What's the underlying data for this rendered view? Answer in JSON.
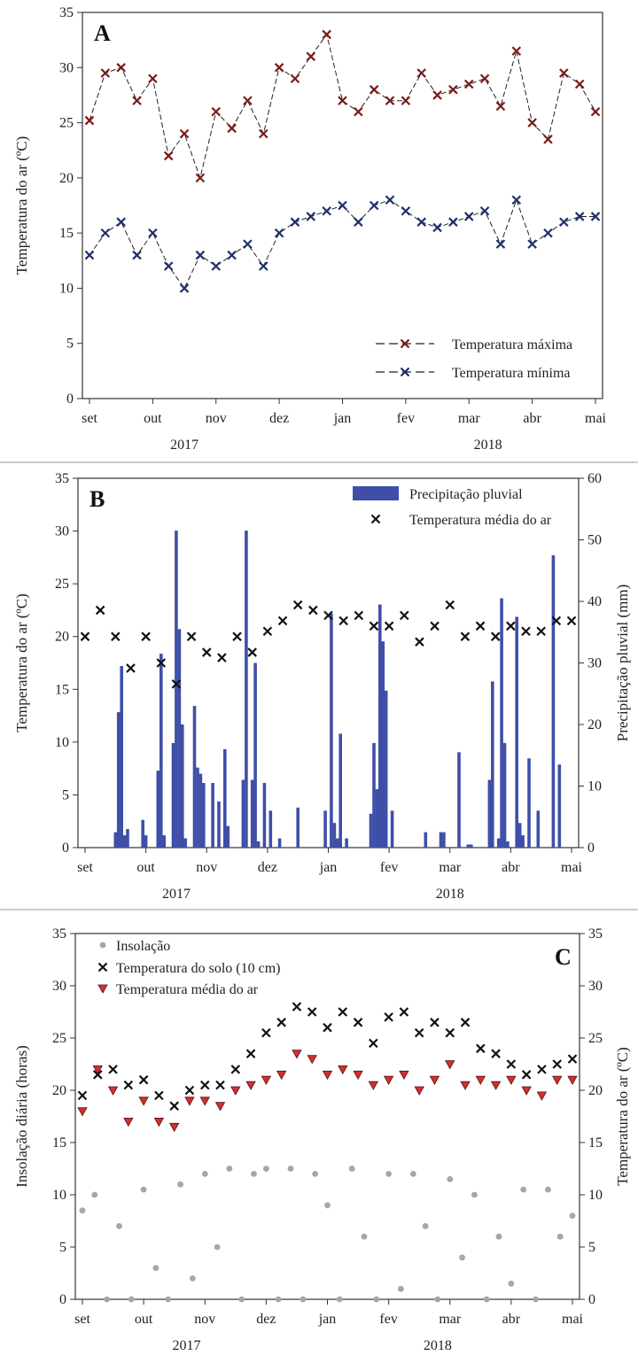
{
  "chart_data": [
    {
      "type": "line",
      "panel_label": "A",
      "ylabel": "Temperatura do ar (ºC)",
      "ylim": [
        0,
        35
      ],
      "yticks": [
        0,
        5,
        10,
        15,
        20,
        25,
        30,
        35
      ],
      "xlim": [
        0,
        8
      ],
      "xtick_labels": [
        "set",
        "out",
        "nov",
        "dez",
        "jan",
        "fev",
        "mar",
        "abr",
        "mai"
      ],
      "year_labels": [
        {
          "label": "2017",
          "x": 1.5
        },
        {
          "label": "2018",
          "x": 6.3
        }
      ],
      "legend_position": "bottom-right",
      "colors": {
        "max": "#7a1a1a",
        "min": "#1f2f6b"
      },
      "series": [
        {
          "name": "Temperatura máxima",
          "x": [
            0.0,
            0.25,
            0.5,
            0.75,
            1.0,
            1.25,
            1.5,
            1.75,
            2.0,
            2.25,
            2.5,
            2.75,
            3.0,
            3.25,
            3.5,
            3.75,
            4.0,
            4.25,
            4.5,
            4.75,
            5.0,
            5.25,
            5.5,
            5.75,
            6.0,
            6.25,
            6.5,
            6.75,
            7.0,
            7.25,
            7.5,
            7.75,
            8.0
          ],
          "values": [
            25.2,
            29.5,
            30.0,
            27.0,
            29.0,
            22.0,
            24.0,
            20.0,
            26.0,
            24.5,
            27.0,
            24.0,
            30.0,
            29.0,
            31.0,
            33.0,
            27.0,
            26.0,
            28.0,
            27.0,
            27.0,
            29.5,
            27.5,
            28.0,
            28.5,
            29.0,
            26.5,
            31.5,
            25.0,
            23.5,
            29.5,
            28.5,
            26.0
          ]
        },
        {
          "name": "Temperatura mínima",
          "x": [
            0.0,
            0.25,
            0.5,
            0.75,
            1.0,
            1.25,
            1.5,
            1.75,
            2.0,
            2.25,
            2.5,
            2.75,
            3.0,
            3.25,
            3.5,
            3.75,
            4.0,
            4.25,
            4.5,
            4.75,
            5.0,
            5.25,
            5.5,
            5.75,
            6.0,
            6.25,
            6.5,
            6.75,
            7.0,
            7.25,
            7.5,
            7.75,
            8.0
          ],
          "values": [
            13.0,
            15.0,
            16.0,
            13.0,
            15.0,
            12.0,
            10.0,
            13.0,
            12.0,
            13.0,
            14.0,
            12.0,
            15.0,
            16.0,
            16.5,
            17.0,
            17.5,
            16.0,
            17.5,
            18.0,
            17.0,
            16.0,
            15.5,
            16.0,
            16.5,
            17.0,
            14.0,
            18.0,
            14.0,
            15.0,
            16.0,
            16.5,
            16.5
          ]
        }
      ]
    },
    {
      "type": "bar",
      "panel_label": "B",
      "ylabel": "Temperatura do ar (ºC)",
      "ylabel_right": "Precipitação pluvial (mm)",
      "ylim": [
        0,
        35
      ],
      "yticks": [
        0,
        5,
        10,
        15,
        20,
        25,
        30,
        35
      ],
      "ylim_right": [
        0,
        60
      ],
      "yticks_right": [
        0,
        10,
        20,
        30,
        40,
        50,
        60
      ],
      "xlim": [
        0,
        8
      ],
      "xtick_labels": [
        "set",
        "out",
        "nov",
        "dez",
        "jan",
        "fev",
        "mar",
        "abr",
        "mai"
      ],
      "year_labels": [
        {
          "label": "2017",
          "x": 1.5
        },
        {
          "label": "2018",
          "x": 6.0
        }
      ],
      "legend_position": "top-right",
      "colors": {
        "precip": "#3f4fa8",
        "temp": "#111111"
      },
      "series": [
        {
          "name": "Precipitação pluvial",
          "axis": "right",
          "x": [
            0.5,
            0.55,
            0.6,
            0.65,
            0.7,
            0.95,
            1.0,
            1.2,
            1.25,
            1.3,
            1.45,
            1.5,
            1.55,
            1.6,
            1.65,
            1.8,
            1.85,
            1.9,
            1.95,
            2.1,
            2.2,
            2.3,
            2.35,
            2.6,
            2.65,
            2.75,
            2.8,
            2.85,
            2.95,
            3.05,
            3.2,
            3.5,
            3.95,
            4.05,
            4.1,
            4.15,
            4.2,
            4.3,
            4.7,
            4.75,
            4.8,
            4.85,
            4.9,
            4.95,
            5.05,
            5.6,
            5.85,
            5.9,
            6.15,
            6.3,
            6.35,
            6.65,
            6.7,
            6.8,
            6.85,
            6.9,
            6.95,
            7.1,
            7.15,
            7.2,
            7.3,
            7.45,
            7.7,
            7.8
          ],
          "values": [
            2.5,
            22.0,
            29.5,
            2.0,
            3.0,
            4.5,
            2.0,
            12.5,
            31.5,
            2.0,
            17.0,
            51.5,
            35.5,
            20.0,
            1.5,
            23.0,
            13.0,
            12.0,
            10.5,
            10.5,
            7.5,
            16.0,
            3.5,
            11.0,
            51.5,
            11.0,
            30.0,
            1.0,
            10.5,
            6.0,
            1.5,
            6.5,
            6.0,
            38.0,
            4.0,
            1.5,
            18.5,
            1.5,
            5.5,
            17.0,
            9.5,
            39.5,
            33.5,
            25.5,
            6.0,
            2.5,
            2.5,
            2.5,
            15.5,
            0.5,
            0.5,
            11.0,
            27.0,
            1.5,
            40.5,
            17.0,
            1.0,
            37.5,
            4.0,
            2.0,
            14.5,
            6.0,
            47.5,
            13.5
          ]
        },
        {
          "name": "Temperatura média do ar",
          "axis": "left",
          "x": [
            0.0,
            0.25,
            0.5,
            0.75,
            1.0,
            1.25,
            1.5,
            1.75,
            2.0,
            2.25,
            2.5,
            2.75,
            3.0,
            3.25,
            3.5,
            3.75,
            4.0,
            4.25,
            4.5,
            4.75,
            5.0,
            5.25,
            5.5,
            5.75,
            6.0,
            6.25,
            6.5,
            6.75,
            7.0,
            7.25,
            7.5,
            7.75,
            8.0
          ],
          "values": [
            20.0,
            22.5,
            20.0,
            17.0,
            20.0,
            17.5,
            15.5,
            20.0,
            18.5,
            18.0,
            20.0,
            18.5,
            20.5,
            21.5,
            23.0,
            22.5,
            22.0,
            21.5,
            22.0,
            21.0,
            21.0,
            22.0,
            19.5,
            21.0,
            23.0,
            20.0,
            21.0,
            20.0,
            21.0,
            20.5,
            20.5,
            21.5,
            21.5
          ]
        }
      ]
    },
    {
      "type": "scatter",
      "panel_label": "C",
      "ylabel": "Insolação diária (horas)",
      "ylabel_right": "Temperatura do ar (ºC)",
      "ylim": [
        0,
        35
      ],
      "yticks": [
        0,
        5,
        10,
        15,
        20,
        25,
        30,
        35
      ],
      "ylim_right": [
        0,
        35
      ],
      "yticks_right": [
        0,
        5,
        10,
        15,
        20,
        25,
        30,
        35
      ],
      "xlim": [
        0,
        8
      ],
      "xtick_labels": [
        "set",
        "out",
        "nov",
        "dez",
        "jan",
        "fev",
        "mar",
        "abr",
        "mai"
      ],
      "year_labels": [
        {
          "label": "2017",
          "x": 1.7
        },
        {
          "label": "2018",
          "x": 5.8
        }
      ],
      "legend_position": "top-left",
      "colors": {
        "insol": "#a6a6a6",
        "soil": "#111111",
        "air": "#d03030"
      },
      "series": [
        {
          "name": "Insolação",
          "axis": "left",
          "x": [
            0.0,
            0.2,
            0.4,
            0.6,
            0.8,
            1.0,
            1.2,
            1.4,
            1.6,
            1.8,
            2.0,
            2.2,
            2.4,
            2.6,
            2.8,
            3.0,
            3.2,
            3.4,
            3.6,
            3.8,
            4.0,
            4.2,
            4.4,
            4.6,
            4.8,
            5.0,
            5.2,
            5.4,
            5.6,
            5.8,
            6.0,
            6.2,
            6.4,
            6.6,
            6.8,
            7.0,
            7.2,
            7.4,
            7.6,
            7.8,
            8.0
          ],
          "values": [
            8.5,
            10.0,
            0.0,
            7.0,
            0.0,
            10.5,
            3.0,
            0.0,
            11.0,
            2.0,
            12.0,
            5.0,
            12.5,
            0.0,
            12.0,
            12.5,
            0.0,
            12.5,
            0.0,
            12.0,
            9.0,
            0.0,
            12.5,
            6.0,
            0.0,
            12.0,
            1.0,
            12.0,
            7.0,
            0.0,
            11.5,
            4.0,
            10.0,
            0.0,
            6.0,
            1.5,
            10.5,
            0.0,
            10.5,
            6.0,
            8.0
          ]
        },
        {
          "name": "Temperatura do solo (10 cm)",
          "axis": "right",
          "x": [
            0.0,
            0.25,
            0.5,
            0.75,
            1.0,
            1.25,
            1.5,
            1.75,
            2.0,
            2.25,
            2.5,
            2.75,
            3.0,
            3.25,
            3.5,
            3.75,
            4.0,
            4.25,
            4.5,
            4.75,
            5.0,
            5.25,
            5.5,
            5.75,
            6.0,
            6.25,
            6.5,
            6.75,
            7.0,
            7.25,
            7.5,
            7.75,
            8.0
          ],
          "values": [
            19.5,
            21.5,
            22.0,
            20.5,
            21.0,
            19.5,
            18.5,
            20.0,
            20.5,
            20.5,
            22.0,
            23.5,
            25.5,
            26.5,
            28.0,
            27.5,
            26.0,
            27.5,
            26.5,
            24.5,
            27.0,
            27.5,
            25.5,
            26.5,
            25.5,
            26.5,
            24.0,
            23.5,
            22.5,
            21.5,
            22.0,
            22.5,
            23.0
          ]
        },
        {
          "name": "Temperatura média do ar",
          "axis": "right",
          "x": [
            0.0,
            0.25,
            0.5,
            0.75,
            1.0,
            1.25,
            1.5,
            1.75,
            2.0,
            2.25,
            2.5,
            2.75,
            3.0,
            3.25,
            3.5,
            3.75,
            4.0,
            4.25,
            4.5,
            4.75,
            5.0,
            5.25,
            5.5,
            5.75,
            6.0,
            6.25,
            6.5,
            6.75,
            7.0,
            7.25,
            7.5,
            7.75,
            8.0
          ],
          "values": [
            18.0,
            22.0,
            20.0,
            17.0,
            19.0,
            17.0,
            16.5,
            19.0,
            19.0,
            18.5,
            20.0,
            20.5,
            21.0,
            21.5,
            23.5,
            23.0,
            21.5,
            22.0,
            21.5,
            20.5,
            21.0,
            21.5,
            20.0,
            21.0,
            22.5,
            20.5,
            21.0,
            20.5,
            21.0,
            20.0,
            19.5,
            21.0,
            21.0
          ]
        }
      ]
    }
  ]
}
